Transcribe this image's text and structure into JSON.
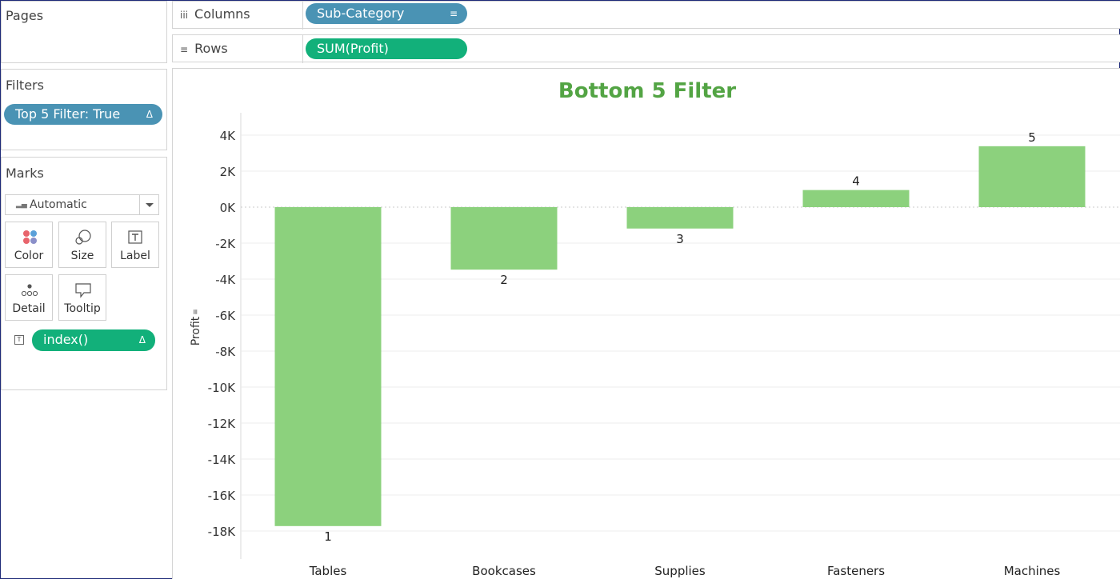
{
  "pages_panel": {
    "title": "Pages"
  },
  "shelves": {
    "columns": {
      "label": "Columns",
      "pill": "Sub-Category"
    },
    "rows": {
      "label": "Rows",
      "pill": "SUM(Profit)"
    }
  },
  "filters_panel": {
    "title": "Filters",
    "pill": "Top 5 Filter: True"
  },
  "marks_panel": {
    "title": "Marks",
    "mark_type": "Automatic",
    "buttons": {
      "color": "Color",
      "size": "Size",
      "label": "Label",
      "detail": "Detail",
      "tooltip": "Tooltip"
    },
    "label_pill": "index()"
  },
  "colors": {
    "bar": "#8cd17d",
    "title": "#53a444",
    "pill_blue": "#4a93b4",
    "pill_green": "#12b07a"
  },
  "chart_data": {
    "type": "bar",
    "title": "Bottom 5 Filter",
    "ylabel": "Profit",
    "xlabel": "",
    "categories": [
      "Tables",
      "Bookcases",
      "Supplies",
      "Fasteners",
      "Machines"
    ],
    "values": [
      -17725,
      -3473,
      -1189,
      950,
      3385
    ],
    "data_labels": [
      "1",
      "2",
      "3",
      "4",
      "5"
    ],
    "ylim": [
      -19000,
      5000
    ],
    "yticks": [
      4000,
      2000,
      0,
      -2000,
      -4000,
      -6000,
      -8000,
      -10000,
      -12000,
      -14000,
      -16000,
      -18000
    ],
    "ytick_labels": [
      "4K",
      "2K",
      "0K",
      "-2K",
      "-4K",
      "-6K",
      "-8K",
      "-10K",
      "-12K",
      "-14K",
      "-16K",
      "-18K"
    ],
    "grid": true
  }
}
